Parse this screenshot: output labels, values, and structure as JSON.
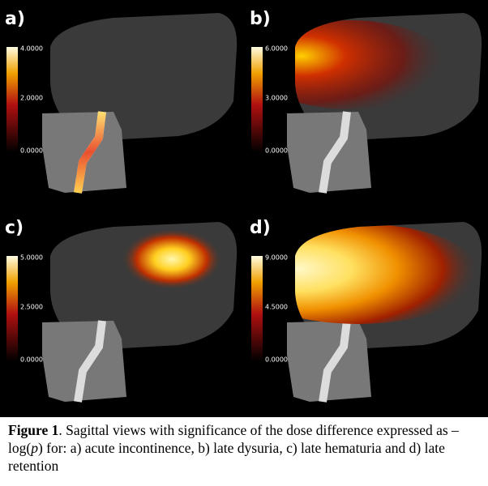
{
  "panels": [
    {
      "label": "a)",
      "ticks": [
        "4.0000",
        "2.0000",
        "0.0000"
      ]
    },
    {
      "label": "b)",
      "ticks": [
        "6.0000",
        "3.0000",
        "0.0000"
      ]
    },
    {
      "label": "c)",
      "ticks": [
        "5.0000",
        "2.5000",
        "0.0000"
      ]
    },
    {
      "label": "d)",
      "ticks": [
        "9.0000",
        "4.5000",
        "0.0000"
      ]
    }
  ],
  "caption": {
    "label": "Figure 1",
    "text_1": ". Sagittal views with significance of the dose difference expressed as –log(",
    "variable": "p",
    "text_2": ") for: a) acute incontinence, b) late dysuria, c) late hematuria and d) late retention"
  }
}
